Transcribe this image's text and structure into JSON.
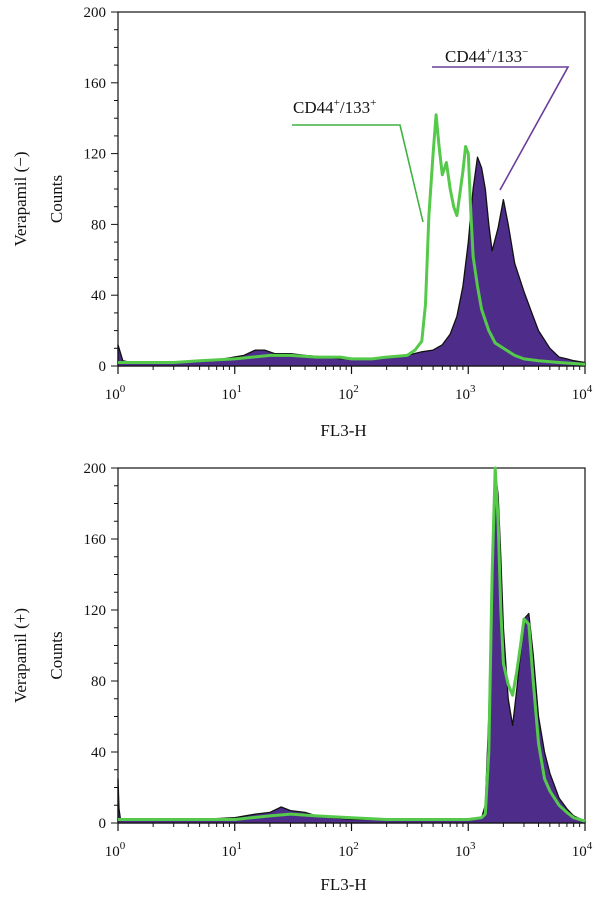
{
  "chart_data": [
    {
      "type": "area",
      "panel_label": "Verapamil (−)",
      "xlabel": "FL3-H",
      "ylabel": "Counts",
      "x_scale": "log",
      "xlim": [
        1,
        10000
      ],
      "ylim": [
        0,
        200
      ],
      "x_ticks": [
        {
          "value": 1,
          "base": "10",
          "exp": "0"
        },
        {
          "value": 10,
          "base": "10",
          "exp": "1"
        },
        {
          "value": 100,
          "base": "10",
          "exp": "2"
        },
        {
          "value": 1000,
          "base": "10",
          "exp": "3"
        },
        {
          "value": 10000,
          "base": "10",
          "exp": "4"
        }
      ],
      "y_ticks": [
        0,
        40,
        80,
        120,
        160,
        200
      ],
      "annotations": [
        {
          "id": "cd44-133pos",
          "base": "CD44",
          "sup1": "+",
          "mid": "/133",
          "sup2": "+",
          "color": "#3fb23f",
          "series": "CD44+/133+"
        },
        {
          "id": "cd44-133neg",
          "base": "CD44",
          "sup1": "+",
          "mid": "/133",
          "sup2": "−",
          "color": "#6a3d9a",
          "series": "CD44+/133−"
        }
      ],
      "series": [
        {
          "name": "CD44+/133−",
          "style": "filled",
          "fill": "#4e2d8a",
          "stroke": "#111111",
          "x": [
            1,
            1.1,
            1.3,
            2,
            3,
            5,
            8,
            12,
            15,
            18,
            22,
            30,
            40,
            60,
            80,
            100,
            150,
            200,
            300,
            400,
            500,
            600,
            700,
            800,
            900,
            1000,
            1100,
            1200,
            1300,
            1400,
            1500,
            1600,
            1800,
            2000,
            2200,
            2500,
            3000,
            3500,
            4000,
            5000,
            6000,
            7000,
            8000,
            10000
          ],
          "y": [
            12,
            3,
            2,
            2,
            2,
            3,
            4,
            6,
            9,
            9,
            7,
            7,
            6,
            5,
            4,
            4,
            4,
            5,
            6,
            8,
            9,
            12,
            18,
            28,
            45,
            70,
            100,
            118,
            112,
            100,
            80,
            65,
            78,
            94,
            80,
            58,
            42,
            30,
            20,
            10,
            5,
            4,
            3,
            2
          ]
        },
        {
          "name": "CD44+/133+",
          "style": "line",
          "stroke": "#55c94a",
          "x": [
            1,
            1.5,
            3,
            5,
            10,
            20,
            30,
            50,
            80,
            100,
            150,
            200,
            300,
            350,
            400,
            430,
            460,
            500,
            530,
            560,
            600,
            650,
            700,
            750,
            800,
            900,
            950,
            1000,
            1050,
            1100,
            1200,
            1300,
            1500,
            1700,
            2000,
            2500,
            3000,
            4000,
            6000,
            10000
          ],
          "y": [
            2,
            2,
            2,
            3,
            4,
            6,
            6,
            5,
            5,
            4,
            4,
            5,
            6,
            9,
            14,
            35,
            85,
            120,
            142,
            125,
            108,
            115,
            100,
            90,
            85,
            110,
            124,
            120,
            88,
            62,
            45,
            32,
            20,
            13,
            10,
            6,
            4,
            3,
            2,
            1
          ]
        }
      ]
    },
    {
      "type": "area",
      "panel_label": "Verapamil (+)",
      "xlabel": "FL3-H",
      "ylabel": "Counts",
      "x_scale": "log",
      "xlim": [
        1,
        10000
      ],
      "ylim": [
        0,
        200
      ],
      "x_ticks": [
        {
          "value": 1,
          "base": "10",
          "exp": "0"
        },
        {
          "value": 10,
          "base": "10",
          "exp": "1"
        },
        {
          "value": 100,
          "base": "10",
          "exp": "2"
        },
        {
          "value": 1000,
          "base": "10",
          "exp": "3"
        },
        {
          "value": 10000,
          "base": "10",
          "exp": "4"
        }
      ],
      "y_ticks": [
        0,
        40,
        80,
        120,
        160,
        200
      ],
      "series": [
        {
          "name": "series-purple",
          "style": "filled",
          "fill": "#4e2d8a",
          "stroke": "#111111",
          "x": [
            1,
            1.02,
            1.05,
            1.1,
            1.3,
            2,
            5,
            10,
            15,
            20,
            25,
            30,
            40,
            50,
            70,
            100,
            200,
            500,
            1000,
            1300,
            1400,
            1500,
            1600,
            1700,
            1800,
            1900,
            2000,
            2200,
            2400,
            2600,
            2800,
            3000,
            3300,
            3600,
            4000,
            4500,
            5000,
            6000,
            7000,
            8000,
            10000
          ],
          "y": [
            25,
            8,
            2,
            2,
            2,
            2,
            2,
            3,
            5,
            6,
            9,
            7,
            6,
            4,
            3,
            2,
            2,
            2,
            2,
            3,
            10,
            60,
            150,
            198,
            185,
            150,
            110,
            70,
            55,
            75,
            95,
            115,
            118,
            95,
            60,
            40,
            28,
            14,
            8,
            4,
            1
          ]
        },
        {
          "name": "series-green",
          "style": "line",
          "stroke": "#55c94a",
          "x": [
            1,
            3,
            10,
            20,
            30,
            50,
            100,
            200,
            500,
            1000,
            1300,
            1400,
            1500,
            1600,
            1700,
            1800,
            1900,
            2000,
            2200,
            2400,
            2600,
            2800,
            3000,
            3300,
            3600,
            4000,
            4500,
            5000,
            6000,
            7000,
            8000,
            10000
          ],
          "y": [
            2,
            2,
            2,
            4,
            5,
            4,
            3,
            2,
            2,
            2,
            3,
            5,
            40,
            140,
            200,
            170,
            120,
            90,
            78,
            72,
            85,
            100,
            115,
            112,
            80,
            45,
            25,
            18,
            10,
            6,
            3,
            1
          ]
        }
      ]
    }
  ]
}
